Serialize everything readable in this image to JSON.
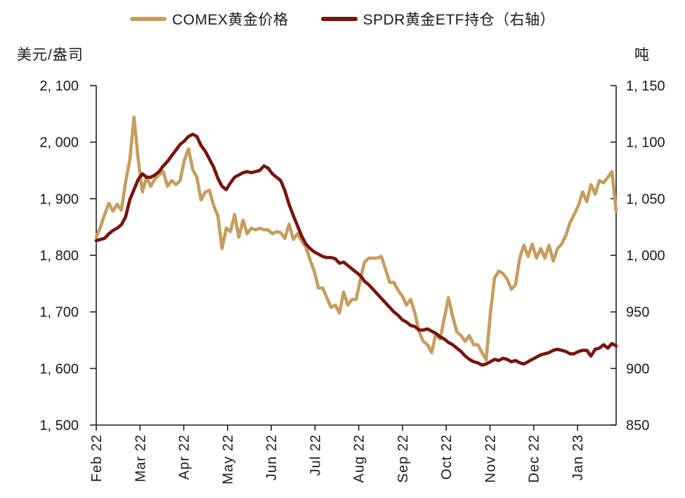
{
  "legend": {
    "items": [
      {
        "label": "COMEX黄金价格",
        "color": "#C69D5E"
      },
      {
        "label": "SPDR黄金ETF持仓（右轴）",
        "color": "#76140E"
      }
    ]
  },
  "chart_data": {
    "type": "line",
    "title": "",
    "x_start": "Feb 2022",
    "x_end": "Jan 2023",
    "x_tick_labels": [
      "Feb 22",
      "Mar 22",
      "Apr 22",
      "May 22",
      "Jun 22",
      "Jul 22",
      "Aug 22",
      "Sep 22",
      "Oct 22",
      "Nov 22",
      "Dec 22",
      "Jan 23"
    ],
    "y_left": {
      "unit_label": "美元/盎司",
      "min": 1500,
      "max": 2100,
      "tick_values": [
        2100,
        2000,
        1900,
        1800,
        1700,
        1600,
        1500
      ],
      "tick_labels": [
        "2, 100",
        "2, 000",
        "1, 900",
        "1, 800",
        "1, 700",
        "1, 600",
        "1, 500"
      ]
    },
    "y_right": {
      "unit_label": "吨",
      "min": 850,
      "max": 1150,
      "tick_values": [
        1150,
        1100,
        1050,
        1000,
        950,
        900,
        850
      ],
      "tick_labels": [
        "1, 150",
        "1, 100",
        "1, 050",
        "1, 000",
        "950",
        "900",
        "850"
      ]
    },
    "grid": false,
    "legend_position": "top",
    "series": [
      {
        "name": "COMEX黄金价格",
        "axis": "left",
        "unit": "美元/盎司",
        "color": "#C69D5E",
        "values": [
          1832,
          1850,
          1872,
          1892,
          1878,
          1890,
          1880,
          1930,
          1968,
          2044,
          1970,
          1912,
          1938,
          1922,
          1935,
          1942,
          1948,
          1922,
          1932,
          1925,
          1932,
          1968,
          1988,
          1952,
          1938,
          1898,
          1912,
          1915,
          1888,
          1870,
          1812,
          1848,
          1842,
          1872,
          1832,
          1862,
          1838,
          1848,
          1845,
          1848,
          1845,
          1845,
          1838,
          1842,
          1840,
          1830,
          1855,
          1828,
          1838,
          1825,
          1815,
          1792,
          1772,
          1742,
          1742,
          1725,
          1708,
          1712,
          1698,
          1735,
          1712,
          1722,
          1722,
          1758,
          1788,
          1795,
          1795,
          1795,
          1798,
          1775,
          1752,
          1752,
          1738,
          1728,
          1712,
          1722,
          1698,
          1665,
          1648,
          1642,
          1628,
          1662,
          1652,
          1688,
          1725,
          1692,
          1665,
          1658,
          1648,
          1658,
          1642,
          1642,
          1628,
          1615,
          1698,
          1760,
          1772,
          1768,
          1758,
          1740,
          1748,
          1795,
          1818,
          1798,
          1820,
          1795,
          1812,
          1795,
          1818,
          1790,
          1812,
          1820,
          1835,
          1858,
          1872,
          1888,
          1912,
          1895,
          1925,
          1908,
          1932,
          1928,
          1938,
          1948,
          1878
        ]
      },
      {
        "name": "SPDR黄金ETF持仓（右轴）",
        "axis": "right",
        "unit": "吨",
        "color": "#76140E",
        "values": [
          1013,
          1014,
          1015,
          1019,
          1022,
          1024,
          1027,
          1034,
          1049,
          1058,
          1067,
          1072,
          1069,
          1069,
          1071,
          1074,
          1079,
          1083,
          1088,
          1093,
          1098,
          1101,
          1105,
          1107,
          1105,
          1097,
          1092,
          1085,
          1078,
          1068,
          1061,
          1058,
          1064,
          1069,
          1071,
          1073,
          1074,
          1073,
          1074,
          1075,
          1079,
          1077,
          1072,
          1069,
          1066,
          1057,
          1045,
          1035,
          1026,
          1017,
          1010,
          1006,
          1003,
          1001,
          999,
          998,
          998,
          997,
          993,
          994,
          991,
          988,
          985,
          982,
          977,
          974,
          970,
          966,
          962,
          958,
          954,
          950,
          947,
          943,
          941,
          938,
          937,
          934,
          934,
          935,
          933,
          931,
          928,
          926,
          923,
          921,
          918,
          915,
          911,
          908,
          906,
          905,
          903,
          904,
          906,
          908,
          907,
          909,
          908,
          906,
          907,
          905,
          904,
          906,
          908,
          910,
          912,
          913,
          914,
          916,
          917,
          916,
          915,
          913,
          913,
          915,
          916,
          916,
          911,
          917,
          918,
          921,
          918,
          922,
          920
        ]
      }
    ]
  },
  "style": {
    "axis_color": "#1f1f1f"
  }
}
